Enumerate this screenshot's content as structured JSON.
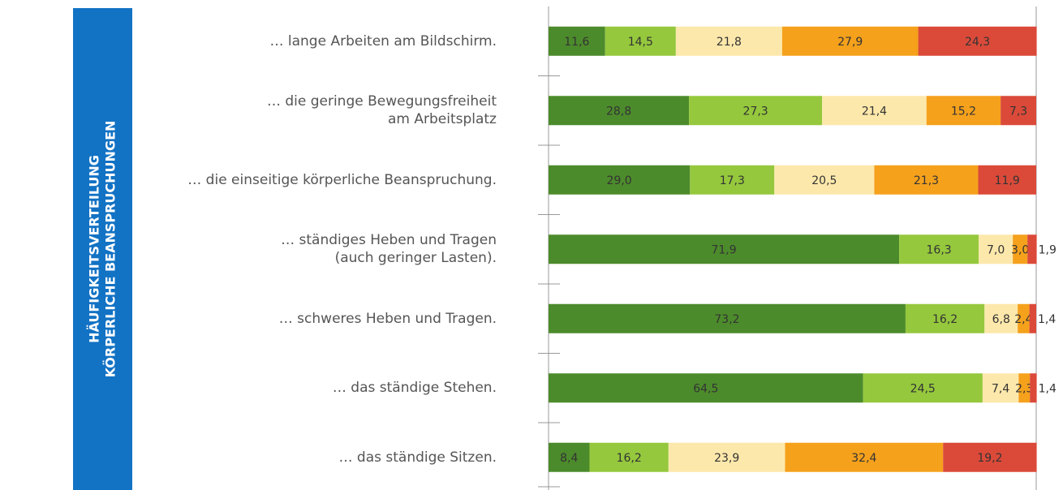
{
  "chart_data": {
    "type": "stacked-bar-horizontal",
    "title": "HÄUFIGKEITSVERTEILUNG",
    "subtitle": "KÖRPERLICHE BEANSPRUCHUNGEN",
    "categories": [
      "… lange Arbeiten am Bildschirm.",
      "… die geringe Bewegungsfreiheit\nam Arbeitsplatz",
      "… die einseitige körperliche Beanspruchung.",
      "… ständiges Heben und Tragen\n(auch geringer Lasten).",
      "… schweres Heben und Tragen.",
      "… das ständige Stehen.",
      "… das ständige Sitzen."
    ],
    "xlim": [
      0,
      100
    ],
    "series": [
      {
        "color": "#4c8b2b",
        "values": [
          11.6,
          28.8,
          29.0,
          71.9,
          73.2,
          64.5,
          8.4
        ],
        "value_labels": [
          "11,6",
          "28,8",
          "29,0",
          "71,9",
          "73,2",
          "64,5",
          "8,4"
        ]
      },
      {
        "color": "#95c83d",
        "values": [
          14.5,
          27.3,
          17.3,
          16.3,
          16.2,
          24.5,
          16.2
        ],
        "value_labels": [
          "14,5",
          "27,3",
          "17,3",
          "16,3",
          "16,2",
          "24,5",
          "16,2"
        ]
      },
      {
        "color": "#fde8ab",
        "values": [
          21.8,
          21.4,
          20.5,
          7.0,
          6.8,
          7.4,
          23.9
        ],
        "value_labels": [
          "21,8",
          "21,4",
          "20,5",
          "7,0",
          "6,8",
          "7,4",
          "23,9"
        ]
      },
      {
        "color": "#f5a11c",
        "values": [
          27.9,
          15.2,
          21.3,
          3.0,
          2.4,
          2.3,
          32.4
        ],
        "value_labels": [
          "27,9",
          "15,2",
          "21,3",
          "3,0",
          "2,4",
          "2,3",
          "32,4"
        ]
      },
      {
        "color": "#db4a39",
        "values": [
          24.3,
          7.3,
          11.9,
          1.9,
          1.4,
          1.4,
          19.2
        ],
        "value_labels": [
          "24,3",
          "7,3",
          "11,9",
          "1,9",
          "1,4",
          "1,4",
          "19,2"
        ]
      }
    ]
  }
}
